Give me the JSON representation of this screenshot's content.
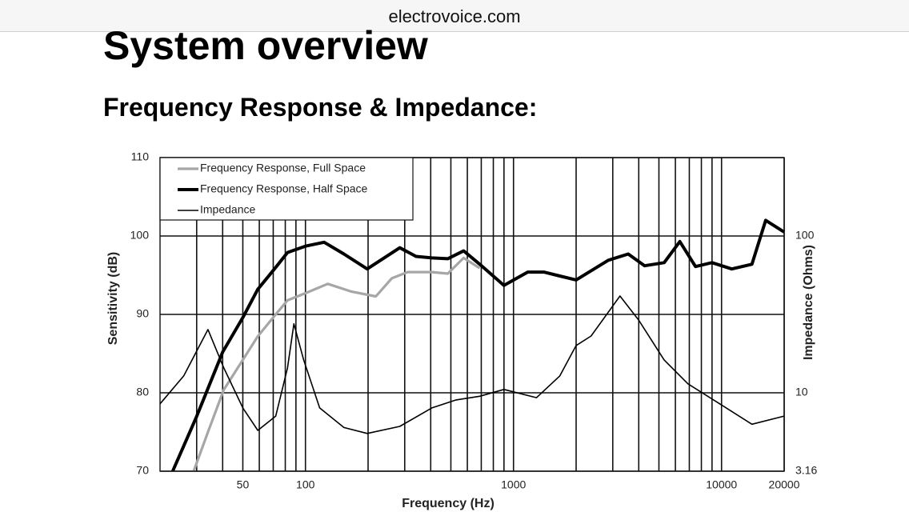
{
  "url": "electrovoice.com",
  "page_title": "System overview",
  "section_title": "Frequency Response & Impedance:",
  "chart_data": {
    "type": "line",
    "xlabel": "Frequency (Hz)",
    "ylabel": "Sensitivity (dB)",
    "y2label": "Impedance (Ohms)",
    "x_log": true,
    "y2_log": true,
    "xlim": [
      20,
      20000
    ],
    "xticks": [
      50,
      100,
      1000,
      10000,
      20000
    ],
    "x_minor_grid": [
      30,
      40,
      60,
      70,
      80,
      90,
      200,
      300,
      400,
      500,
      600,
      700,
      800,
      900,
      2000,
      3000,
      4000,
      5000,
      6000,
      7000,
      8000,
      9000
    ],
    "ylim": [
      70,
      110
    ],
    "yticks": [
      70,
      80,
      90,
      100,
      110
    ],
    "y2lim": [
      3.16,
      316
    ],
    "y2ticks": [
      3.16,
      10,
      100
    ],
    "grid": true,
    "legend": "upper left",
    "series": [
      {
        "name": "Frequency Response, Full Space",
        "color": "#a6a6a6",
        "x": [
          29,
          34,
          40.5,
          50,
          59,
          72,
          82,
          100,
          128,
          167,
          218,
          260,
          310,
          405,
          483,
          576,
          688
        ],
        "values": [
          70,
          75,
          80.4,
          84.2,
          87.2,
          90,
          91.8,
          92.7,
          93.9,
          92.9,
          92.3,
          94.6,
          95.4,
          95.4,
          95.2,
          97.2,
          95.9
        ]
      },
      {
        "name": "Frequency Response, Half Space",
        "color": "#000000",
        "x": [
          23,
          30,
          40,
          50,
          59,
          72,
          82,
          100,
          123,
          153,
          198,
          284,
          340,
          405,
          483,
          576,
          688,
          900,
          1170,
          1400,
          1670,
          2000,
          2850,
          3560,
          4270,
          5300,
          6300,
          7500,
          9000,
          11200,
          14000,
          16300,
          20000
        ],
        "values": [
          70,
          77,
          85.2,
          89.6,
          93.2,
          96,
          97.9,
          98.7,
          99.2,
          97.7,
          95.8,
          98.5,
          97.4,
          97.2,
          97.1,
          98.1,
          96.4,
          93.7,
          95.4,
          95.4,
          94.9,
          94.4,
          96.9,
          97.7,
          96.2,
          96.6,
          99.3,
          96.1,
          96.6,
          95.8,
          96.4,
          102,
          100.5
        ]
      },
      {
        "name": "Impedance",
        "color": "#000000",
        "axis": "y2",
        "x": [
          20,
          26,
          34,
          40.5,
          50,
          59,
          72,
          82,
          88,
          98,
          117,
          153,
          198,
          284,
          405,
          530,
          688,
          900,
          1290,
          1670,
          2000,
          2360,
          3250,
          4000,
          5300,
          6900,
          9800,
          14000,
          20000
        ],
        "values": [
          8.5,
          12.8,
          25.3,
          14.4,
          8,
          5.75,
          7.1,
          14.4,
          27.5,
          16.2,
          8,
          6,
          5.5,
          6.1,
          8,
          9,
          9.5,
          10.5,
          9.3,
          12.8,
          20,
          23,
          41.4,
          29,
          16.2,
          11.4,
          8.5,
          6.3,
          7.1
        ]
      }
    ]
  }
}
